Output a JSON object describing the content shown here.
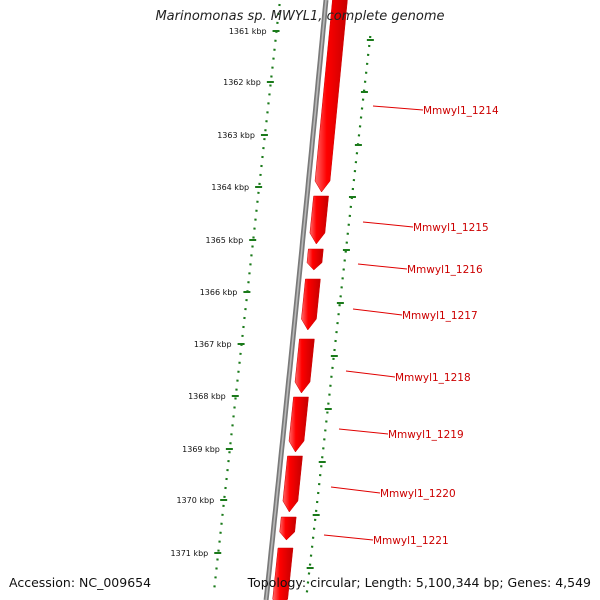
{
  "header": {
    "title": "Marinomonas sp. MWYL1, complete genome"
  },
  "footer": {
    "accession": "Accession: NC_009654",
    "summary": "Topology: circular; Length: 5,100,344 bp; Genes: 4,549"
  },
  "ruler": {
    "ticks": [
      "1361 kbp",
      "1362 kbp",
      "1363 kbp",
      "1364 kbp",
      "1365 kbp",
      "1366 kbp",
      "1367 kbp",
      "1368 kbp",
      "1369 kbp",
      "1370 kbp",
      "1371 kbp"
    ]
  },
  "genes": [
    {
      "label": "Mmwyl1_1214"
    },
    {
      "label": "Mmwyl1_1215"
    },
    {
      "label": "Mmwyl1_1216"
    },
    {
      "label": "Mmwyl1_1217"
    },
    {
      "label": "Mmwyl1_1218"
    },
    {
      "label": "Mmwyl1_1219"
    },
    {
      "label": "Mmwyl1_1220"
    },
    {
      "label": "Mmwyl1_1221"
    }
  ],
  "colors": {
    "gene": "#ff0000",
    "gene_label": "#cc0000",
    "backbone": "#7a7a7a",
    "ruler": "#1a7a1a"
  }
}
